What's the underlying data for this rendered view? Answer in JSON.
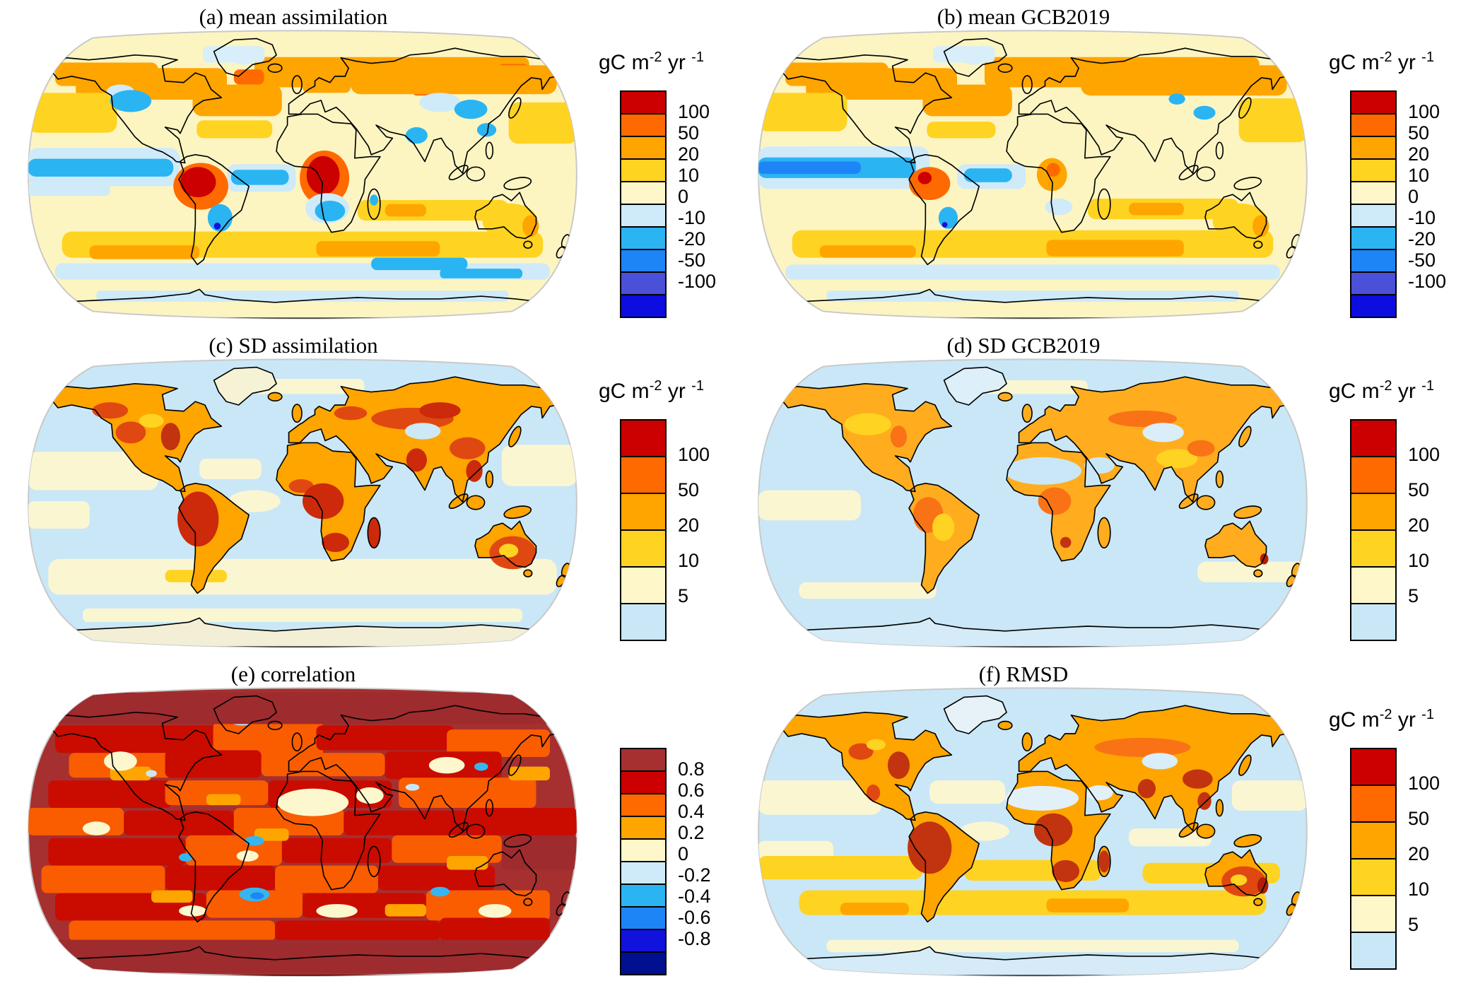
{
  "unit": {
    "base1": "gC m",
    "sup1": "-2",
    "base2": " yr ",
    "sup2": "-1"
  },
  "panels": [
    {
      "title": "(a) mean assimilation"
    },
    {
      "title": "(b) mean GCB2019"
    },
    {
      "title": "(c) SD assimilation"
    },
    {
      "title": "(d) SD GCB2019"
    },
    {
      "title": "(e) correlation"
    },
    {
      "title": "(f)  RMSD"
    }
  ],
  "colorbars": {
    "flux": {
      "labels": [
        "100",
        "50",
        "20",
        "10",
        "0",
        "-10",
        "-20",
        "-50",
        "-100"
      ],
      "colors": [
        "#CC0000",
        "#FF6A00",
        "#FFA500",
        "#FFD321",
        "#FDF7C9",
        "#CFEAF9",
        "#2AB4F2",
        "#1E85F7",
        "#4A50D8",
        "#0D0DE0"
      ]
    },
    "mag": {
      "labels": [
        "100",
        "50",
        "20",
        "10",
        "5"
      ],
      "colors": [
        "#CC0000",
        "#FF6A00",
        "#FFA500",
        "#FFD321",
        "#FDF7C9",
        "#C9E7F7"
      ]
    },
    "corr": {
      "labels": [
        "0.8",
        "0.6",
        "0.4",
        "0.2",
        "0",
        "-0.2",
        "-0.4",
        "-0.6",
        "-0.8"
      ],
      "colors": [
        "#A5302F",
        "#CC0000",
        "#FF6A00",
        "#FFA500",
        "#FDF7C9",
        "#CFEAF9",
        "#2AB4F2",
        "#1E85F7",
        "#1212DD",
        "#001090"
      ]
    }
  },
  "chart_data": {
    "type": "heatmap",
    "subtype": "global map panels, Robinson-like projection, 2x3 grid",
    "panels": [
      {
        "id": "a",
        "title": "(a) mean assimilation",
        "unit": "gC m-2 yr-1",
        "scale": "flux",
        "bin_edges": [
          100,
          50,
          20,
          10,
          0,
          -10,
          -20,
          -50,
          -100
        ],
        "summary": "Cream background; orange boreal band over Canada/Scandinavia/Siberia; dark red maxima over Amazon and Congo basins; blue equatorial Pacific/Atlantic bands; blue patches central North America, southern Africa, East Asia, India; gold bands in subtropical and southern oceans."
      },
      {
        "id": "b",
        "title": "(b) mean GCB2019",
        "unit": "gC m-2 yr-1",
        "scale": "flux",
        "bin_edges": [
          100,
          50,
          20,
          10,
          0,
          -10,
          -20,
          -50,
          -100
        ],
        "summary": "Similar to (a) but smoother: wider medium-blue equatorial Pacific band, orange (not dark red) Amazon, orange Congo, fewer blue land patches."
      },
      {
        "id": "c",
        "title": "(c) SD assimilation",
        "unit": "gC m-2 yr-1",
        "scale": "mag",
        "bin_edges": [
          100,
          50,
          20,
          10,
          5
        ],
        "summary": "Light-blue oceans (<5), pale-yellow subtropical/southern ocean bands; continents orange with dark red (>50-100) over Amazon, central/southern Africa, eastern North America, Siberia, India, Southeast Asia and Australian rim."
      },
      {
        "id": "d",
        "title": "(d) SD GCB2019",
        "unit": "gC m-2 yr-1",
        "scale": "mag",
        "bin_edges": [
          100,
          50,
          20,
          10,
          5
        ],
        "summary": "Like (c) but weaker: continents orange-gold, Sahara/Arabia and central Asia pale (<5), only small dark red spots (southern Africa, eastern Australia)."
      },
      {
        "id": "e",
        "title": "(e) correlation",
        "unit": null,
        "scale": "corr",
        "bin_edges": [
          0.8,
          0.6,
          0.4,
          0.2,
          0,
          -0.2,
          -0.4,
          -0.6,
          -0.8
        ],
        "summary": "Mottled dark red/red/orange (>0.4-0.8) almost everywhere; solid dark brick polar caps; cream low-correlation patches over Sahara, Arabia, western North America, central Asia; scattered blue negative patches (Greenland, equatorial and southern oceans)."
      },
      {
        "id": "f",
        "title": "(f)  RMSD",
        "unit": "gC m-2 yr-1",
        "scale": "mag",
        "bin_edges": [
          100,
          50,
          20,
          10,
          5
        ],
        "summary": "Light-blue oceans with cream/gold streaks; continents orange with dark red (>50) over Amazon, central and southern Africa, eastern North America, India, Southeast Asia, Australia rim; Sahara/Arabia pale."
      }
    ],
    "legend_position": "right of each panel",
    "grid": false
  }
}
